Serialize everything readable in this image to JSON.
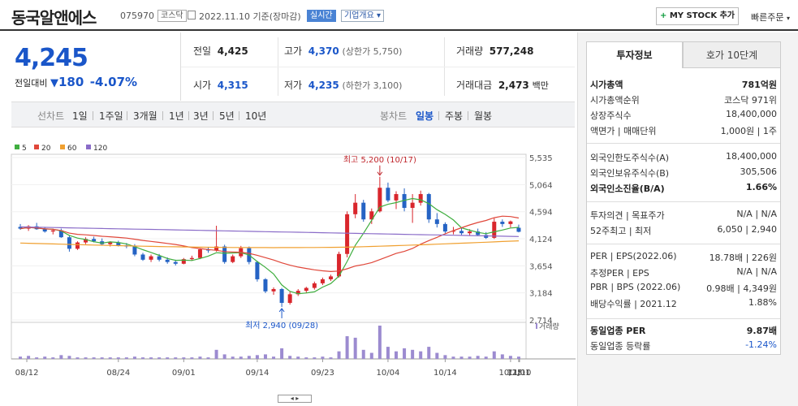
{
  "header": {
    "title": "동국알앤에스",
    "code": "075970",
    "market": "코스닥",
    "date": "2022.11.10 기준(장마감)",
    "realtime": "실시간",
    "corp_info": "기업개요",
    "my_stock": "MY STOCK 추가",
    "quick_order": "빠른주문"
  },
  "quote": {
    "price": "4,245",
    "change_label": "전일대비",
    "change_value": "180",
    "change_pct": "-4.07%",
    "prev_label": "전일",
    "prev": "4,425",
    "high_label": "고가",
    "high": "4,370",
    "upper_limit": "(상한가 5,750)",
    "volume_label": "거래량",
    "volume": "577,248",
    "open_label": "시가",
    "open": "4,315",
    "low_label": "저가",
    "low": "4,235",
    "lower_limit": "(하한가 3,100)",
    "amount_label": "거래대금",
    "amount": "2,473",
    "amount_unit": "백만"
  },
  "toolbar": {
    "line_label": "선차트",
    "periods": [
      "1일",
      "1주일",
      "3개월",
      "1년",
      "3년",
      "5년",
      "10년"
    ],
    "candle_label": "봉차트",
    "candles": [
      "일봉",
      "주봉",
      "월봉"
    ]
  },
  "legend": [
    "5",
    "20",
    "60",
    "120"
  ],
  "colors": {
    "ma5": "#3fae3f",
    "ma20": "#e0473a",
    "ma60": "#f0a030",
    "ma120": "#8a6cc8",
    "up": "#d9262c",
    "down": "#2563c4",
    "volume": "#9c8bd0"
  },
  "chart_data": {
    "type": "candlestick",
    "y_ticks": [
      "5,535",
      "5,064",
      "4,594",
      "4,124",
      "3,654",
      "3,184",
      "2,714"
    ],
    "ylim": [
      2714,
      5535
    ],
    "x_ticks": [
      "08/12",
      "08/24",
      "09/01",
      "09/14",
      "09/23",
      "10/04",
      "10/14",
      "10/25",
      "11/01",
      "11/10"
    ],
    "annotation_high": "최고 5,200 (10/17)",
    "annotation_low": "최저 2,940 (09/28)",
    "volume_label": "거래량",
    "candles": [
      [
        4330,
        4380,
        4280,
        4300
      ],
      [
        4300,
        4360,
        4260,
        4340
      ],
      [
        4340,
        4400,
        4280,
        4290
      ],
      [
        4290,
        4330,
        4230,
        4250
      ],
      [
        4250,
        4300,
        4200,
        4270
      ],
      [
        4270,
        4300,
        4140,
        4150
      ],
      [
        4150,
        4180,
        3900,
        3950
      ],
      [
        3950,
        4080,
        3930,
        4060
      ],
      [
        4060,
        4150,
        4030,
        4120
      ],
      [
        4120,
        4160,
        4060,
        4080
      ],
      [
        4080,
        4130,
        4010,
        4030
      ],
      [
        4030,
        4080,
        3990,
        4060
      ],
      [
        4060,
        4090,
        3990,
        4010
      ],
      [
        4010,
        4050,
        3960,
        3990
      ],
      [
        3990,
        4030,
        3820,
        3850
      ],
      [
        3850,
        3880,
        3740,
        3760
      ],
      [
        3760,
        3850,
        3720,
        3820
      ],
      [
        3820,
        3860,
        3730,
        3760
      ],
      [
        3760,
        3800,
        3690,
        3720
      ],
      [
        3720,
        3760,
        3660,
        3690
      ],
      [
        3690,
        3790,
        3680,
        3770
      ],
      [
        3770,
        3830,
        3740,
        3790
      ],
      [
        3790,
        3960,
        3770,
        3940
      ],
      [
        3940,
        3980,
        3880,
        3920
      ],
      [
        3920,
        4350,
        3900,
        3990
      ],
      [
        3990,
        4020,
        3690,
        3720
      ],
      [
        3720,
        3850,
        3700,
        3820
      ],
      [
        3820,
        4000,
        3790,
        3960
      ],
      [
        3960,
        3990,
        3680,
        3720
      ],
      [
        3720,
        3740,
        3380,
        3420
      ],
      [
        3420,
        3440,
        3180,
        3210
      ],
      [
        3210,
        3280,
        3150,
        3250
      ],
      [
        3250,
        3270,
        2940,
        3010
      ],
      [
        3010,
        3200,
        2980,
        3160
      ],
      [
        3160,
        3250,
        3130,
        3220
      ],
      [
        3220,
        3290,
        3180,
        3270
      ],
      [
        3270,
        3380,
        3240,
        3350
      ],
      [
        3350,
        3450,
        3320,
        3420
      ],
      [
        3420,
        3500,
        3390,
        3470
      ],
      [
        3470,
        3900,
        3450,
        3860
      ],
      [
        3860,
        4600,
        3800,
        4550
      ],
      [
        4550,
        4900,
        4480,
        4750
      ],
      [
        4750,
        4800,
        4420,
        4460
      ],
      [
        4460,
        4650,
        4380,
        4600
      ],
      [
        4600,
        5200,
        4580,
        5010
      ],
      [
        5010,
        5100,
        4760,
        4790
      ],
      [
        4790,
        4950,
        4640,
        4900
      ],
      [
        4900,
        5000,
        4600,
        4660
      ],
      [
        4660,
        4900,
        4400,
        4750
      ],
      [
        4750,
        4960,
        4700,
        4900
      ],
      [
        4900,
        4920,
        4400,
        4460
      ],
      [
        4460,
        4570,
        4320,
        4380
      ],
      [
        4380,
        4410,
        4220,
        4250
      ],
      [
        4250,
        4330,
        4200,
        4260
      ],
      [
        4260,
        4310,
        4190,
        4220
      ],
      [
        4220,
        4290,
        4180,
        4250
      ],
      [
        4250,
        4300,
        4170,
        4190
      ],
      [
        4190,
        4240,
        4120,
        4140
      ],
      [
        4140,
        4480,
        4120,
        4420
      ],
      [
        4420,
        4460,
        4330,
        4380
      ],
      [
        4380,
        4440,
        4320,
        4425
      ],
      [
        4315,
        4370,
        4235,
        4245
      ]
    ],
    "volumes": [
      3,
      4,
      2,
      3,
      2,
      5,
      4,
      2,
      2,
      2,
      2,
      2,
      2,
      2,
      3,
      2,
      2,
      2,
      2,
      2,
      2,
      2,
      3,
      2,
      12,
      6,
      3,
      3,
      4,
      5,
      6,
      3,
      14,
      4,
      3,
      2,
      2,
      3,
      2,
      10,
      30,
      28,
      12,
      8,
      44,
      16,
      10,
      14,
      12,
      10,
      16,
      8,
      5,
      3,
      3,
      3,
      4,
      3,
      10,
      6,
      4,
      3
    ]
  },
  "right_panel": {
    "tab_info": "투자정보",
    "tab_quote": "호가 10단계",
    "rows1": [
      {
        "l": "시가총액",
        "r": "781억원",
        "bold": true
      },
      {
        "l": "시가총액순위",
        "r": "코스닥 971위"
      },
      {
        "l": "상장주식수",
        "r": "18,400,000"
      },
      {
        "l": "액면가 | 매매단위",
        "r": "1,000원 | 1주"
      }
    ],
    "rows2": [
      {
        "l": "외국인한도주식수(A)",
        "r": "18,400,000"
      },
      {
        "l": "외국인보유주식수(B)",
        "r": "305,506"
      },
      {
        "l": "외국인소진율(B/A)",
        "r": "1.66%",
        "bold": true
      }
    ],
    "rows3": [
      {
        "l": "투자의견 | 목표주가",
        "r": "N/A | N/A"
      },
      {
        "l": "52주최고 | 최저",
        "r": "6,050 | 2,940"
      }
    ],
    "rows4": [
      {
        "l": "PER | EPS(2022.06)",
        "r": "18.78배 | 226원"
      },
      {
        "l": "추정PER | EPS",
        "r": "N/A | N/A"
      },
      {
        "l": "PBR | BPS (2022.06)",
        "r": "0.98배 | 4,349원"
      },
      {
        "l": "배당수익률 | 2021.12",
        "r": "1.88%"
      }
    ],
    "rows5": [
      {
        "l": "동일업종 PER",
        "r": "9.87배",
        "bold": true
      },
      {
        "l": "동일업종 등락률",
        "r": "-1.24%",
        "blue": true
      }
    ]
  }
}
